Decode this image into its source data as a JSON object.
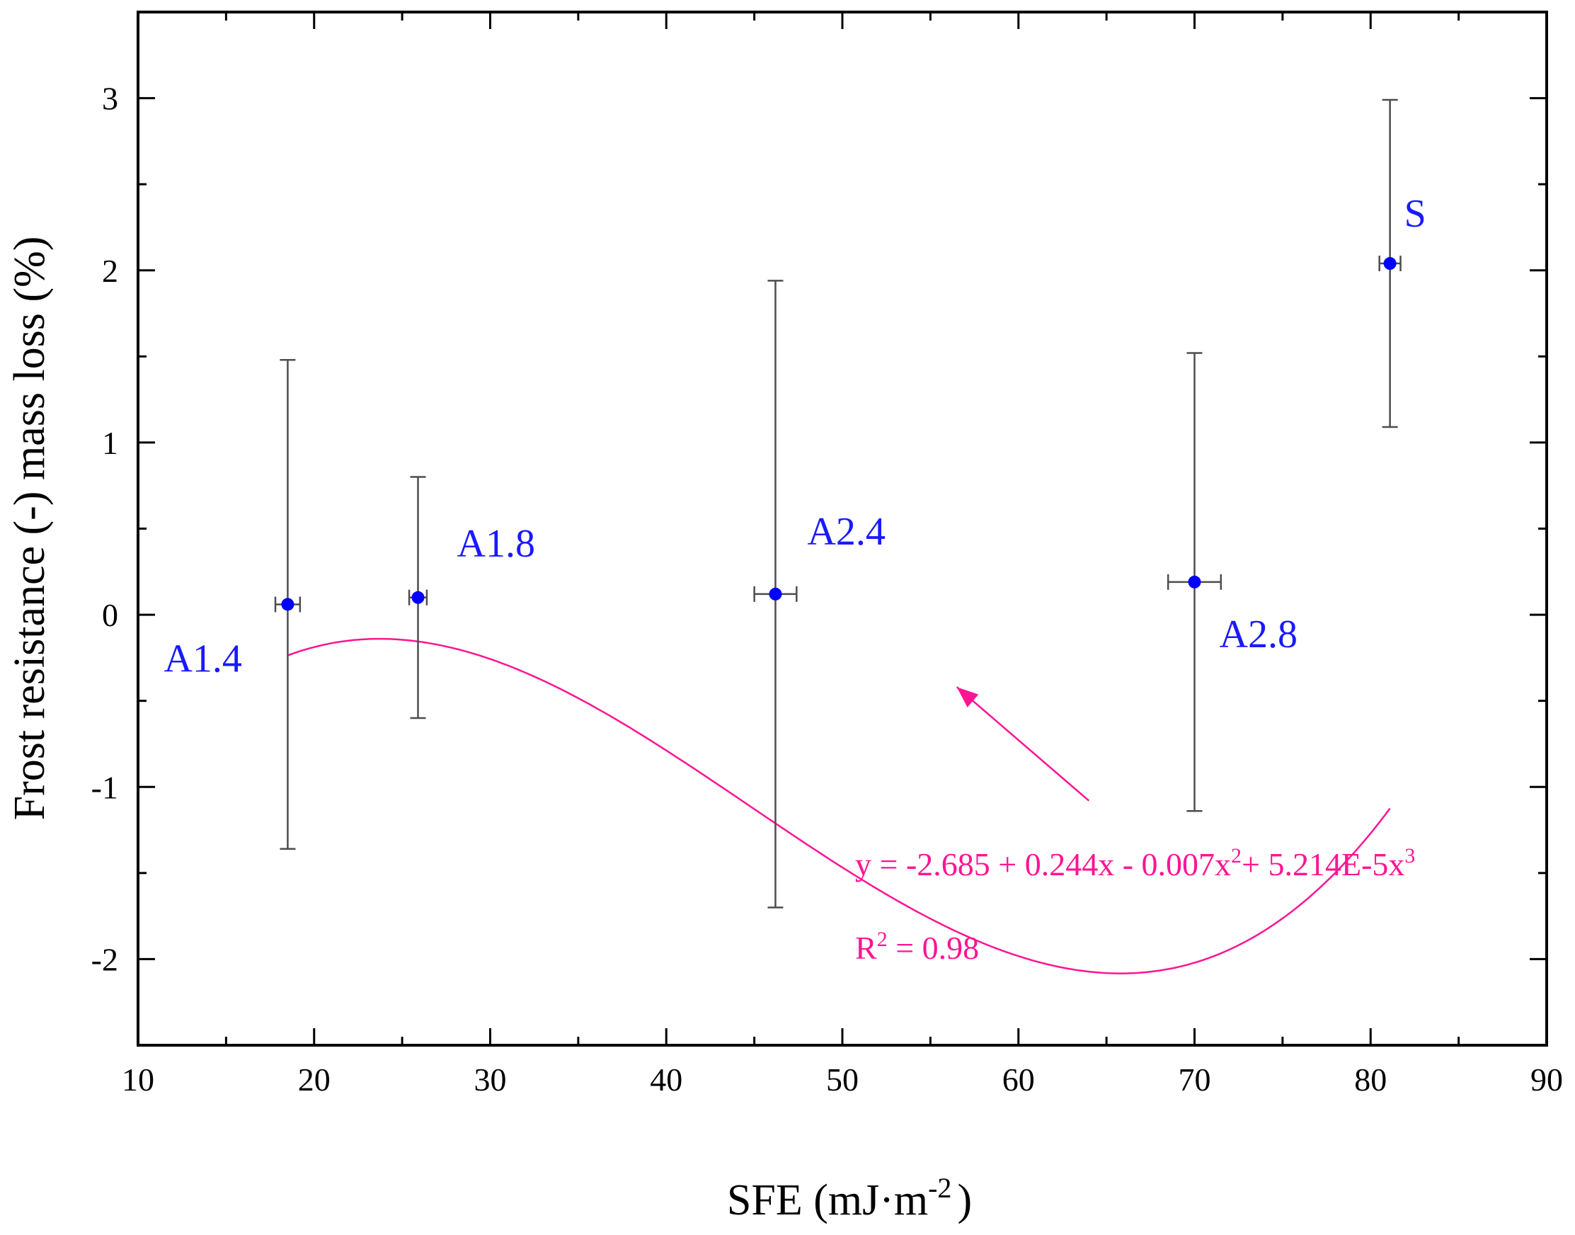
{
  "chart_data": {
    "type": "scatter",
    "title": "",
    "xlabel": "SFE (mJ·m",
    "xlabel_sup": "-2",
    "xlabel_end": ")",
    "ylabel": "Frost resistance (-) mass loss (%)",
    "xlim": [
      10,
      90
    ],
    "ylim": [
      -2.5,
      3.5
    ],
    "x_ticks": [
      10,
      20,
      30,
      40,
      50,
      60,
      70,
      80,
      90
    ],
    "y_ticks": [
      -2,
      -1,
      0,
      1,
      2,
      3
    ],
    "x_tick_labels": [
      "10",
      "20",
      "30",
      "40",
      "50",
      "60",
      "70",
      "80",
      "90"
    ],
    "y_tick_labels": [
      "-2",
      "-1",
      "0",
      "1",
      "2",
      "3"
    ],
    "grid": false,
    "points": [
      {
        "label": "A1.4",
        "x": 18.5,
        "y": 0.06,
        "xerr": 0.7,
        "yerr_low": 1.42,
        "yerr_high": 1.42
      },
      {
        "label": "A1.8",
        "x": 25.9,
        "y": 0.1,
        "xerr": 0.5,
        "yerr_low": 0.7,
        "yerr_high": 0.7
      },
      {
        "label": "A2.4",
        "x": 46.2,
        "y": 0.12,
        "xerr": 1.2,
        "yerr_low": 1.82,
        "yerr_high": 1.82
      },
      {
        "label": "A2.8",
        "x": 70.0,
        "y": 0.19,
        "xerr": 1.5,
        "yerr_low": 1.33,
        "yerr_high": 1.33
      },
      {
        "label": "S",
        "x": 81.1,
        "y": 2.04,
        "xerr": 0.6,
        "yerr_low": 0.95,
        "yerr_high": 0.95
      }
    ],
    "fit": {
      "coefficients": [
        -2.685,
        0.244,
        -0.007,
        5.214e-05
      ],
      "x_range": [
        18.5,
        81.1
      ],
      "equation_parts": [
        "y = -2.685 + 0.244x - 0.007x",
        "2",
        "+ 5.214E-5x",
        "3"
      ],
      "r2_parts": [
        "R",
        "2",
        " = 0.98"
      ],
      "arrow_from": [
        64,
        -1.08
      ],
      "arrow_to": [
        56.5,
        -0.42
      ]
    },
    "colors": {
      "point": "#0000ff",
      "label": "#1a1aff",
      "fit": "#ff1493",
      "errorbar": "#4d4d4d",
      "axis": "#000000"
    }
  }
}
